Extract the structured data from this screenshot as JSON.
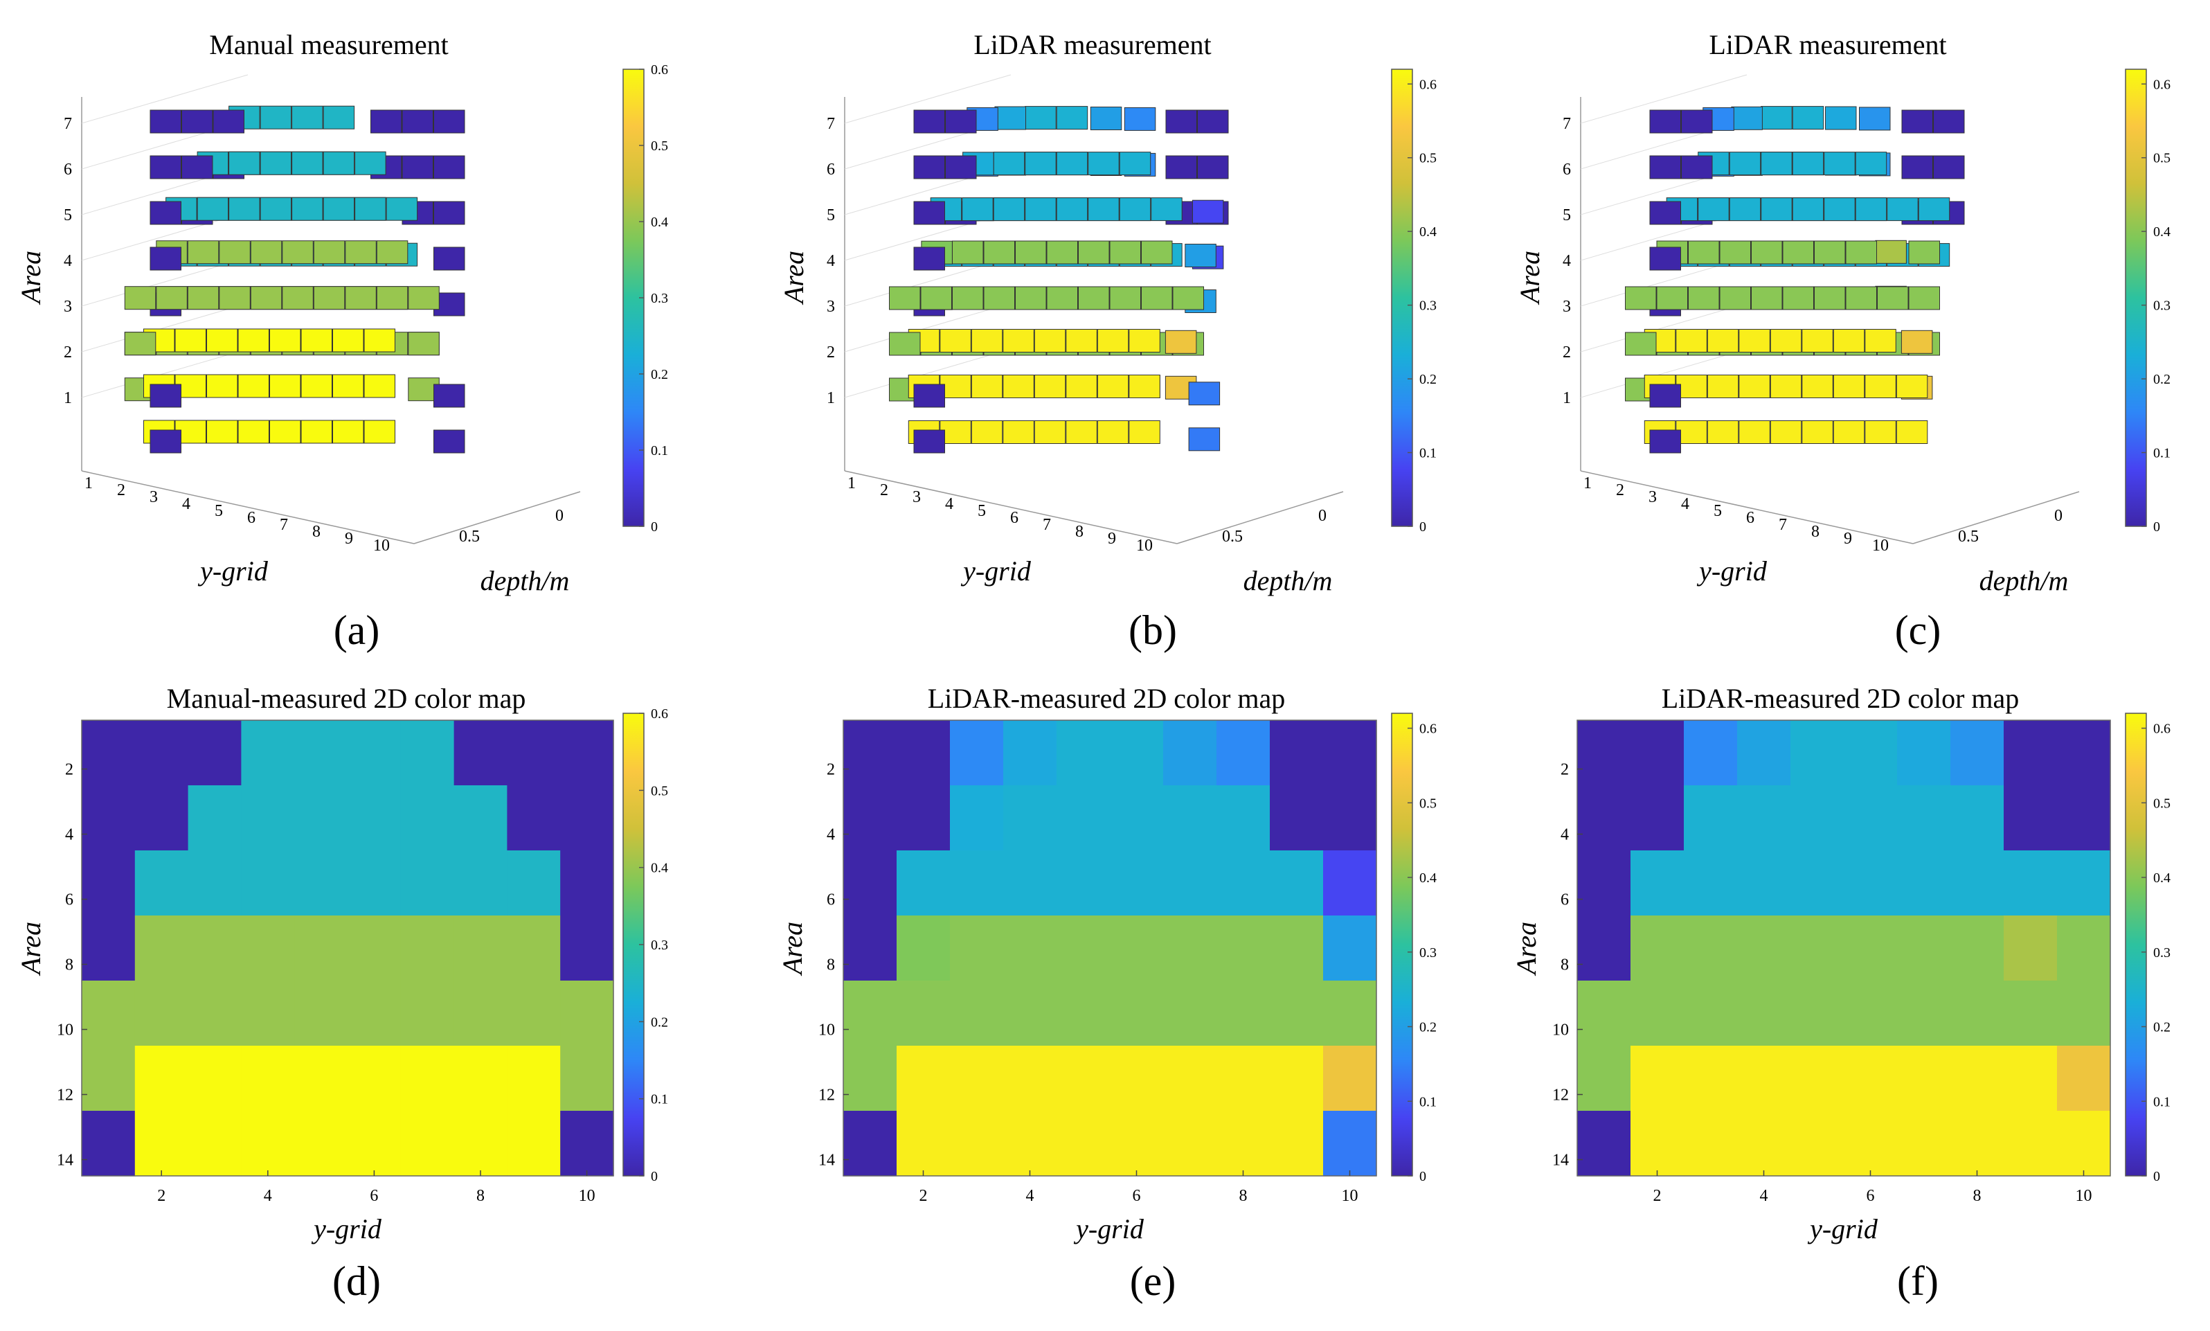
{
  "colormap": [
    "#3e26a8",
    "#4743f2",
    "#2e87f7",
    "#1aafd8",
    "#2dc29f",
    "#7cc85a",
    "#d0c13a",
    "#fac740",
    "#f9fb0e"
  ],
  "panels": [
    {
      "label": "(a)",
      "kind": "3d",
      "title": "Manual measurement",
      "ylabel": "Area",
      "xlabel": "y-grid",
      "zlabel": "depth/m",
      "data_key": "manual"
    },
    {
      "label": "(b)",
      "kind": "3d",
      "title": "LiDAR measurement",
      "ylabel": "Area",
      "xlabel": "y-grid",
      "zlabel": "depth/m",
      "data_key": "lidar_b"
    },
    {
      "label": "(c)",
      "kind": "3d",
      "title": "LiDAR measurement",
      "ylabel": "Area",
      "xlabel": "y-grid",
      "zlabel": "depth/m",
      "data_key": "lidar_c"
    },
    {
      "label": "(d)",
      "kind": "2d",
      "title": "Manual-measured 2D color map",
      "ylabel": "Area",
      "xlabel": "y-grid",
      "data_key": "manual"
    },
    {
      "label": "(e)",
      "kind": "2d",
      "title": "LiDAR-measured 2D color map",
      "ylabel": "Area",
      "xlabel": "y-grid",
      "data_key": "lidar_b"
    },
    {
      "label": "(f)",
      "kind": "2d",
      "title": "LiDAR-measured 2D color map",
      "ylabel": "Area",
      "xlabel": "y-grid",
      "data_key": "lidar_c"
    }
  ],
  "chart_data": {
    "type": "heatmap",
    "description_axes": {
      "x": "y-grid",
      "y": "Area",
      "color": "depth/m"
    },
    "x_categories": [
      1,
      2,
      3,
      4,
      5,
      6,
      7,
      8,
      9,
      10
    ],
    "y_categories": [
      1,
      2,
      3,
      4,
      5,
      6,
      7,
      8,
      9,
      10,
      11,
      12,
      13,
      14
    ],
    "x_ticks_2d": [
      2,
      4,
      6,
      8,
      10
    ],
    "y_ticks_2d": [
      2,
      4,
      6,
      8,
      10,
      12,
      14
    ],
    "area_ticks_3d": [
      1,
      2,
      3,
      4,
      5,
      6,
      7
    ],
    "depth_ticks_3d": [
      "0.5",
      "0"
    ],
    "xlim": [
      0.5,
      10.5
    ],
    "ylim": [
      14.5,
      0.5
    ],
    "manual_clim": [
      0,
      0.6
    ],
    "manual_colorbar_ticks": [
      "0",
      "0.1",
      "0.2",
      "0.3",
      "0.4",
      "0.5",
      "0.6"
    ],
    "lidar_clim": [
      0,
      0.62
    ],
    "lidar_colorbar_ticks": [
      "0",
      "0.1",
      "0.2",
      "0.3",
      "0.4",
      "0.5",
      "0.6"
    ],
    "manual": [
      [
        0.0,
        0.0,
        0.0,
        0.25,
        0.25,
        0.25,
        0.25,
        0.0,
        0.0,
        0.0
      ],
      [
        0.0,
        0.0,
        0.0,
        0.25,
        0.25,
        0.25,
        0.25,
        0.0,
        0.0,
        0.0
      ],
      [
        0.0,
        0.0,
        0.25,
        0.25,
        0.25,
        0.25,
        0.25,
        0.25,
        0.0,
        0.0
      ],
      [
        0.0,
        0.0,
        0.25,
        0.25,
        0.25,
        0.25,
        0.25,
        0.25,
        0.0,
        0.0
      ],
      [
        0.0,
        0.25,
        0.25,
        0.25,
        0.25,
        0.25,
        0.25,
        0.25,
        0.25,
        0.0
      ],
      [
        0.0,
        0.25,
        0.25,
        0.25,
        0.25,
        0.25,
        0.25,
        0.25,
        0.25,
        0.0
      ],
      [
        0.0,
        0.4,
        0.4,
        0.4,
        0.4,
        0.4,
        0.4,
        0.4,
        0.4,
        0.0
      ],
      [
        0.0,
        0.4,
        0.4,
        0.4,
        0.4,
        0.4,
        0.4,
        0.4,
        0.4,
        0.0
      ],
      [
        0.4,
        0.4,
        0.4,
        0.4,
        0.4,
        0.4,
        0.4,
        0.4,
        0.4,
        0.4
      ],
      [
        0.4,
        0.4,
        0.4,
        0.4,
        0.4,
        0.4,
        0.4,
        0.4,
        0.4,
        0.4
      ],
      [
        0.4,
        0.6,
        0.6,
        0.6,
        0.6,
        0.6,
        0.6,
        0.6,
        0.6,
        0.4
      ],
      [
        0.4,
        0.6,
        0.6,
        0.6,
        0.6,
        0.6,
        0.6,
        0.6,
        0.6,
        0.4
      ],
      [
        0.0,
        0.6,
        0.6,
        0.6,
        0.6,
        0.6,
        0.6,
        0.6,
        0.6,
        0.0
      ],
      [
        0.0,
        0.6,
        0.6,
        0.6,
        0.6,
        0.6,
        0.6,
        0.6,
        0.6,
        0.0
      ]
    ],
    "lidar_b": [
      [
        0.0,
        0.0,
        0.16,
        0.22,
        0.24,
        0.24,
        0.2,
        0.16,
        0.0,
        0.0
      ],
      [
        0.0,
        0.0,
        0.16,
        0.22,
        0.24,
        0.24,
        0.2,
        0.16,
        0.0,
        0.0
      ],
      [
        0.0,
        0.0,
        0.23,
        0.24,
        0.24,
        0.24,
        0.24,
        0.24,
        0.0,
        0.0
      ],
      [
        0.0,
        0.0,
        0.23,
        0.24,
        0.24,
        0.24,
        0.24,
        0.24,
        0.0,
        0.0
      ],
      [
        0.0,
        0.24,
        0.24,
        0.24,
        0.24,
        0.24,
        0.24,
        0.24,
        0.24,
        0.08
      ],
      [
        0.0,
        0.24,
        0.24,
        0.24,
        0.24,
        0.24,
        0.24,
        0.24,
        0.24,
        0.08
      ],
      [
        0.0,
        0.39,
        0.4,
        0.4,
        0.4,
        0.4,
        0.4,
        0.4,
        0.4,
        0.2
      ],
      [
        0.0,
        0.39,
        0.4,
        0.4,
        0.4,
        0.4,
        0.4,
        0.4,
        0.4,
        0.2
      ],
      [
        0.4,
        0.4,
        0.4,
        0.4,
        0.4,
        0.4,
        0.4,
        0.4,
        0.4,
        0.4
      ],
      [
        0.4,
        0.4,
        0.4,
        0.4,
        0.4,
        0.4,
        0.4,
        0.4,
        0.4,
        0.4
      ],
      [
        0.4,
        0.6,
        0.6,
        0.6,
        0.6,
        0.6,
        0.6,
        0.6,
        0.6,
        0.52
      ],
      [
        0.4,
        0.6,
        0.6,
        0.6,
        0.6,
        0.6,
        0.6,
        0.6,
        0.6,
        0.52
      ],
      [
        0.0,
        0.6,
        0.6,
        0.6,
        0.6,
        0.6,
        0.6,
        0.6,
        0.6,
        0.14
      ],
      [
        0.0,
        0.6,
        0.6,
        0.6,
        0.6,
        0.6,
        0.6,
        0.6,
        0.6,
        0.14
      ]
    ],
    "lidar_c": [
      [
        0.0,
        0.0,
        0.16,
        0.21,
        0.24,
        0.24,
        0.22,
        0.18,
        0.0,
        0.0
      ],
      [
        0.0,
        0.0,
        0.16,
        0.21,
        0.24,
        0.24,
        0.22,
        0.18,
        0.0,
        0.0
      ],
      [
        0.0,
        0.0,
        0.24,
        0.24,
        0.24,
        0.24,
        0.24,
        0.24,
        0.0,
        0.0
      ],
      [
        0.0,
        0.0,
        0.24,
        0.24,
        0.24,
        0.24,
        0.24,
        0.24,
        0.0,
        0.0
      ],
      [
        0.0,
        0.24,
        0.24,
        0.24,
        0.24,
        0.24,
        0.24,
        0.24,
        0.24,
        0.24
      ],
      [
        0.0,
        0.24,
        0.24,
        0.24,
        0.24,
        0.24,
        0.24,
        0.24,
        0.24,
        0.24
      ],
      [
        0.0,
        0.4,
        0.4,
        0.4,
        0.4,
        0.4,
        0.4,
        0.4,
        0.43,
        0.4
      ],
      [
        0.0,
        0.4,
        0.4,
        0.4,
        0.4,
        0.4,
        0.4,
        0.4,
        0.43,
        0.4
      ],
      [
        0.4,
        0.4,
        0.4,
        0.4,
        0.4,
        0.4,
        0.4,
        0.4,
        0.4,
        0.4
      ],
      [
        0.4,
        0.4,
        0.4,
        0.4,
        0.4,
        0.4,
        0.4,
        0.4,
        0.4,
        0.4
      ],
      [
        0.4,
        0.6,
        0.6,
        0.6,
        0.6,
        0.6,
        0.6,
        0.6,
        0.6,
        0.52
      ],
      [
        0.4,
        0.6,
        0.6,
        0.6,
        0.6,
        0.6,
        0.6,
        0.6,
        0.6,
        0.52
      ],
      [
        0.0,
        0.6,
        0.6,
        0.6,
        0.6,
        0.6,
        0.6,
        0.6,
        0.6,
        0.6
      ],
      [
        0.0,
        0.6,
        0.6,
        0.6,
        0.6,
        0.6,
        0.6,
        0.6,
        0.6,
        0.6
      ]
    ]
  }
}
